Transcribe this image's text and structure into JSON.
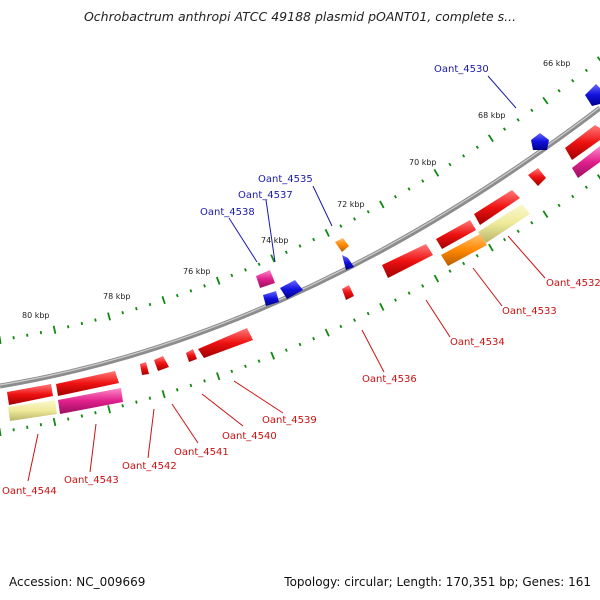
{
  "title": "Ochrobactrum anthropi ATCC 49188 plasmid pOANT01, complete s...",
  "footer": {
    "accession": "Accession: NC_009669",
    "summary": "Topology: circular; Length: 170,351 bp; Genes: 161"
  },
  "kbp_labels": [
    "66 kbp",
    "68 kbp",
    "70 kbp",
    "72 kbp",
    "74 kbp",
    "76 kbp",
    "78 kbp",
    "80 kbp"
  ],
  "gene_labels_outer": [
    "Oant_4530",
    "Oant_4535",
    "Oant_4537",
    "Oant_4538"
  ],
  "gene_labels_inner": [
    "Oant_4532",
    "Oant_4533",
    "Oant_4534",
    "Oant_4536",
    "Oant_4539",
    "Oant_4540",
    "Oant_4541",
    "Oant_4542",
    "Oant_4543",
    "Oant_4544"
  ],
  "colors": {
    "backbone": "#8c8c8c",
    "gene_cds": "#ee1111",
    "gene_blue": "#1111dd",
    "gene_orange": "#ff8800",
    "gene_magenta": "#e0208c",
    "gene_pale": "#eeea9a",
    "tick": "#118811",
    "outer_label": "#1a1aaa",
    "inner_label": "#cc1111"
  }
}
